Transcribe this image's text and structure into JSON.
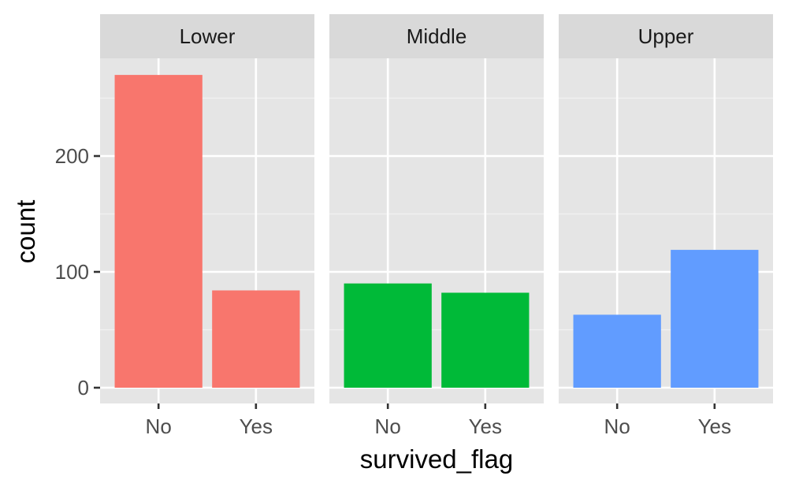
{
  "chart_data": {
    "type": "bar",
    "xlabel": "survived_flag",
    "ylabel": "count",
    "categories": [
      "No",
      "Yes"
    ],
    "ylim": [
      0,
      300
    ],
    "yticks": [
      0,
      100,
      200
    ],
    "panels": [
      {
        "name": "Lower",
        "color": "#F8766D",
        "values": [
          270,
          84
        ]
      },
      {
        "name": "Middle",
        "color": "#00BA38",
        "values": [
          90,
          82
        ]
      },
      {
        "name": "Upper",
        "color": "#619CFF",
        "values": [
          63,
          119
        ]
      }
    ],
    "grid": true,
    "panel_background": "#E5E5E5",
    "strip_background": "#D9D9D9"
  }
}
